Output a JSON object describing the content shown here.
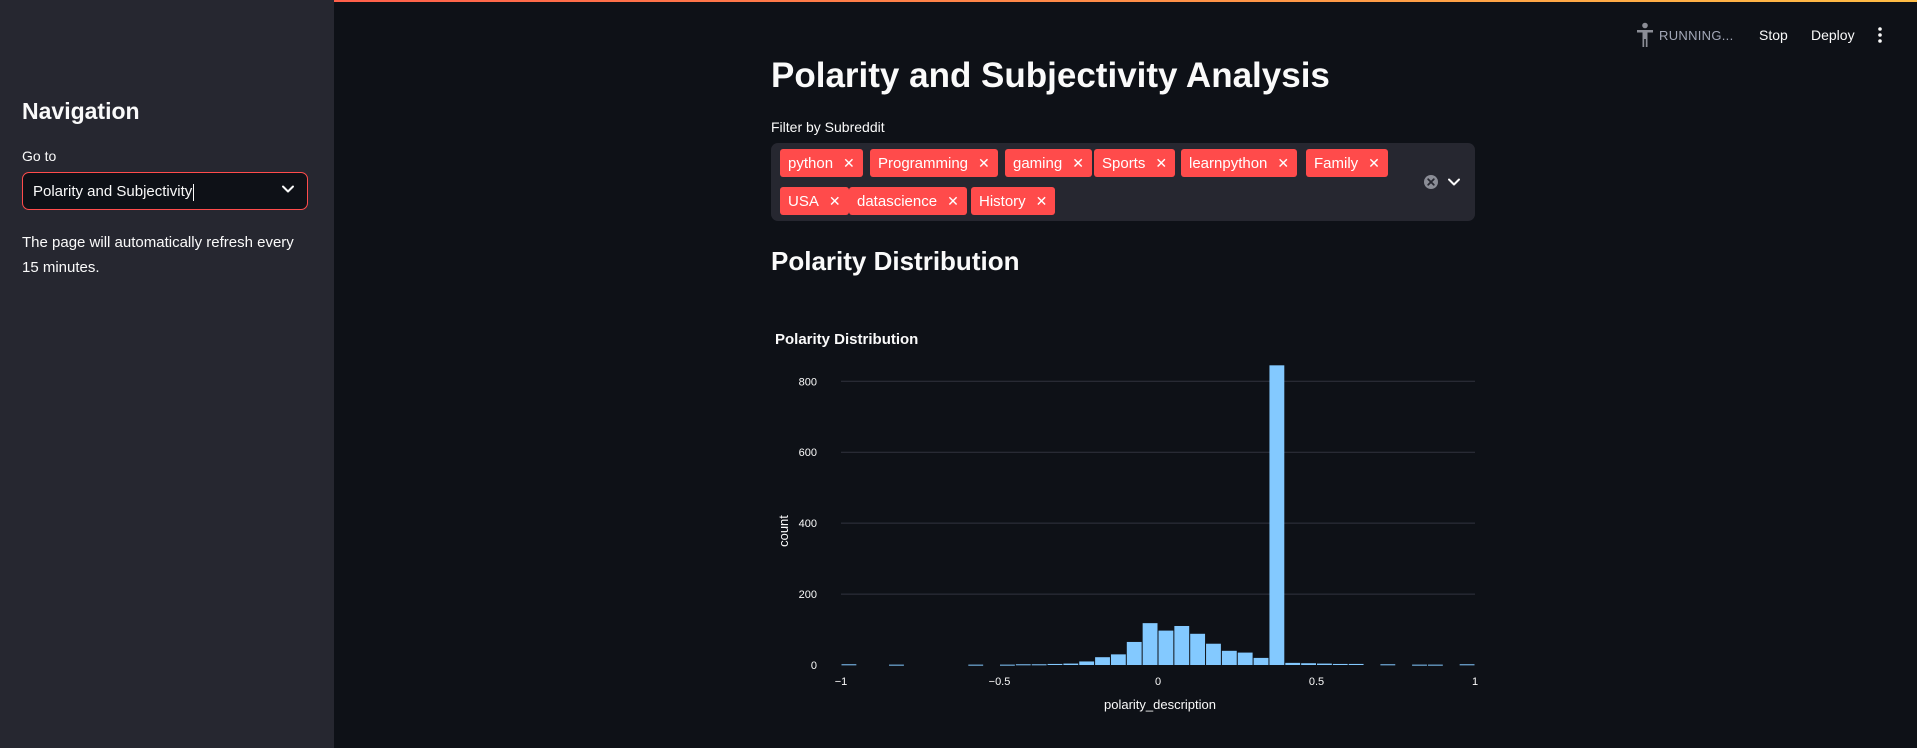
{
  "sidebar": {
    "title": "Navigation",
    "goto_label": "Go to",
    "select_value": "Polarity and Subjectivity",
    "note": "The page will automatically refresh every 15 minutes."
  },
  "toolbar": {
    "status": "RUNNING...",
    "stop_label": "Stop",
    "deploy_label": "Deploy",
    "icons": [
      "running-figure-icon",
      "more-vertical-icon"
    ]
  },
  "main": {
    "title": "Polarity and Subjectivity Analysis",
    "filter_label": "Filter by Subreddit",
    "chips": [
      "python",
      "Programming",
      "gaming",
      "Sports",
      "learnpython",
      "Family",
      "USA",
      "datascience",
      "History"
    ],
    "section_title": "Polarity Distribution"
  },
  "colors": {
    "accent": "#ff4b4b",
    "background": "#0e1117",
    "sidebar": "#262730",
    "bar": "#83c9ff"
  },
  "chart_data": {
    "type": "bar",
    "title": "Polarity Distribution",
    "xlabel": "polarity_description",
    "ylabel": "count",
    "xlim": [
      -1,
      1
    ],
    "ylim": [
      0,
      860
    ],
    "xticks": [
      -1,
      -0.5,
      0,
      0.5,
      1
    ],
    "xtick_labels": [
      "−1",
      "−0.5",
      "0",
      "0.5",
      "1"
    ],
    "yticks": [
      0,
      200,
      400,
      600,
      800
    ],
    "grid": true,
    "bin_width": 0.05,
    "bins": [
      {
        "x0": -1.0,
        "count": 2
      },
      {
        "x0": -0.85,
        "count": 1
      },
      {
        "x0": -0.6,
        "count": 1
      },
      {
        "x0": -0.5,
        "count": 1
      },
      {
        "x0": -0.45,
        "count": 2
      },
      {
        "x0": -0.4,
        "count": 2
      },
      {
        "x0": -0.35,
        "count": 3
      },
      {
        "x0": -0.3,
        "count": 4
      },
      {
        "x0": -0.25,
        "count": 10
      },
      {
        "x0": -0.2,
        "count": 22
      },
      {
        "x0": -0.15,
        "count": 30
      },
      {
        "x0": -0.1,
        "count": 65
      },
      {
        "x0": -0.05,
        "count": 118
      },
      {
        "x0": 0.0,
        "count": 97
      },
      {
        "x0": 0.05,
        "count": 110
      },
      {
        "x0": 0.1,
        "count": 88
      },
      {
        "x0": 0.15,
        "count": 60
      },
      {
        "x0": 0.2,
        "count": 40
      },
      {
        "x0": 0.25,
        "count": 35
      },
      {
        "x0": 0.3,
        "count": 20
      },
      {
        "x0": 0.35,
        "count": 845
      },
      {
        "x0": 0.4,
        "count": 6
      },
      {
        "x0": 0.45,
        "count": 5
      },
      {
        "x0": 0.5,
        "count": 4
      },
      {
        "x0": 0.55,
        "count": 3
      },
      {
        "x0": 0.6,
        "count": 3
      },
      {
        "x0": 0.7,
        "count": 2
      },
      {
        "x0": 0.8,
        "count": 1
      },
      {
        "x0": 0.85,
        "count": 1
      },
      {
        "x0": 0.95,
        "count": 2
      }
    ]
  }
}
